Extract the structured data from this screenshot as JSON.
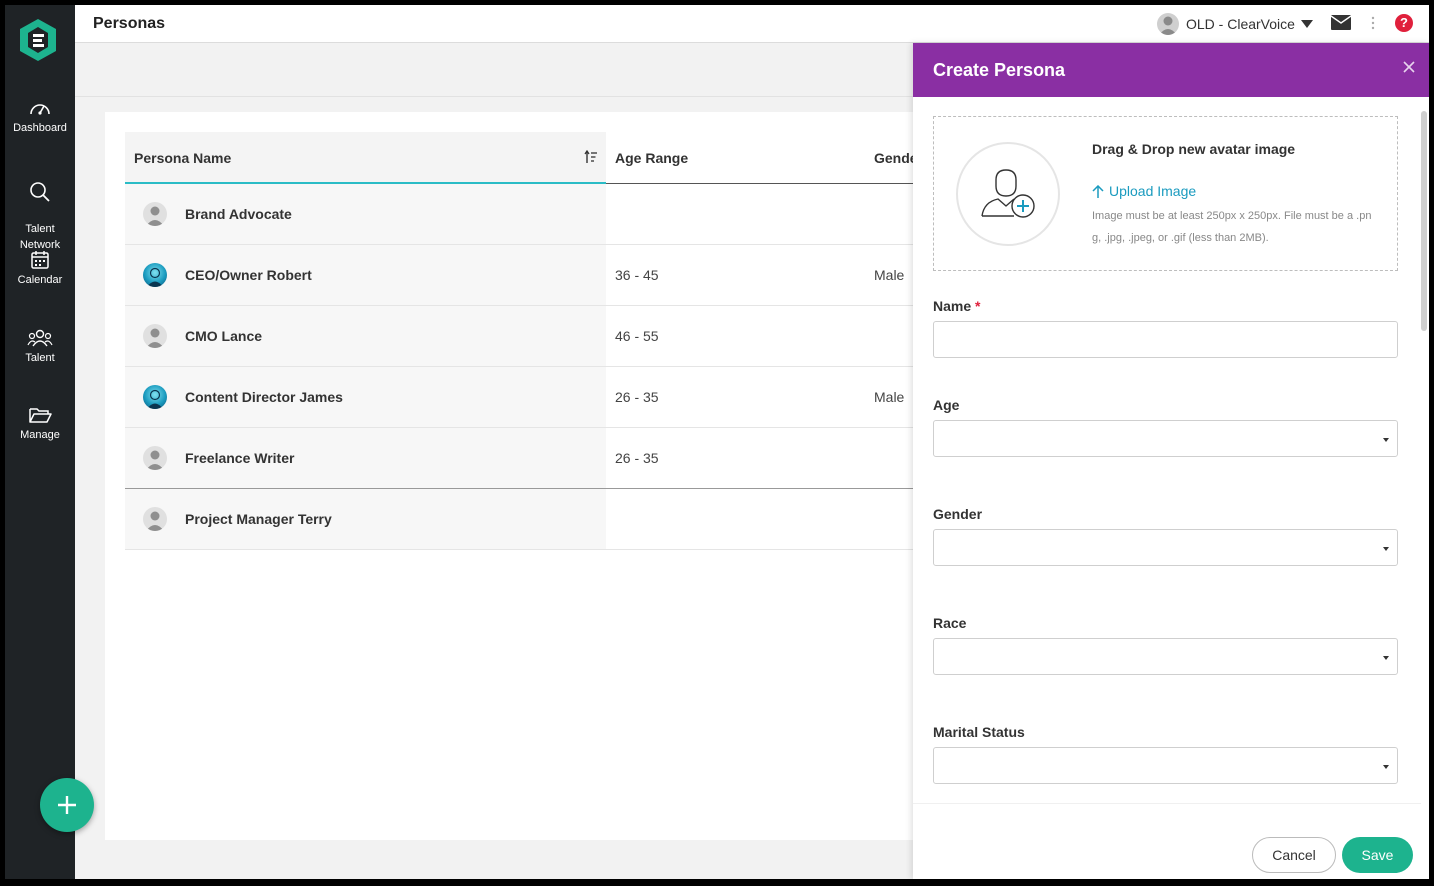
{
  "header": {
    "title": "Personas",
    "account_name": "OLD - ClearVoice",
    "icons": {
      "mail": "mail-icon",
      "more": "more-vertical-icon",
      "help": "help-icon"
    },
    "help_glyph": "?"
  },
  "sidebar": {
    "items": [
      {
        "label": "Dashboard",
        "icon": "dashboard-icon"
      },
      {
        "label": "Talent\nNetwork",
        "icon": "search-icon"
      },
      {
        "label": "Calendar",
        "icon": "calendar-icon"
      },
      {
        "label": "Talent",
        "icon": "people-icon"
      },
      {
        "label": "Manage",
        "icon": "folder-icon"
      }
    ],
    "fab_icon": "plus-icon"
  },
  "table": {
    "columns": [
      "Persona Name",
      "Age Range",
      "Gender"
    ],
    "rows": [
      {
        "name": "Brand Advocate",
        "age": "",
        "gender": "",
        "avatar": "default"
      },
      {
        "name": "CEO/Owner Robert",
        "age": "36 - 45",
        "gender": "Male",
        "avatar": "photo"
      },
      {
        "name": "CMO Lance",
        "age": "46 - 55",
        "gender": "",
        "avatar": "default"
      },
      {
        "name": "Content Director James",
        "age": "26 - 35",
        "gender": "Male",
        "avatar": "photo"
      },
      {
        "name": "Freelance Writer",
        "age": "26 - 35",
        "gender": "",
        "avatar": "default"
      },
      {
        "name": "Project Manager Terry",
        "age": "",
        "gender": "",
        "avatar": "default"
      }
    ]
  },
  "drawer": {
    "title": "Create Persona",
    "dropzone": {
      "title": "Drag & Drop new avatar image",
      "upload_label": "Upload Image",
      "help": "Image must be at least 250px x 250px. File must be a .png, .jpg, .jpeg, or .gif (less than 2MB)."
    },
    "fields": {
      "name": {
        "label": "Name",
        "required_mark": "*",
        "value": ""
      },
      "age": {
        "label": "Age",
        "value": ""
      },
      "gender": {
        "label": "Gender",
        "value": ""
      },
      "race": {
        "label": "Race",
        "value": ""
      },
      "marital_status": {
        "label": "Marital Status",
        "value": ""
      }
    },
    "buttons": {
      "cancel": "Cancel",
      "save": "Save"
    }
  },
  "colors": {
    "sidebar_bg": "#1f2326",
    "accent_green": "#1db38e",
    "drawer_header": "#8a2fa3",
    "link_blue": "#1a9bbf",
    "sort_underline": "#2bbcc6",
    "required_red": "#e0203c"
  }
}
